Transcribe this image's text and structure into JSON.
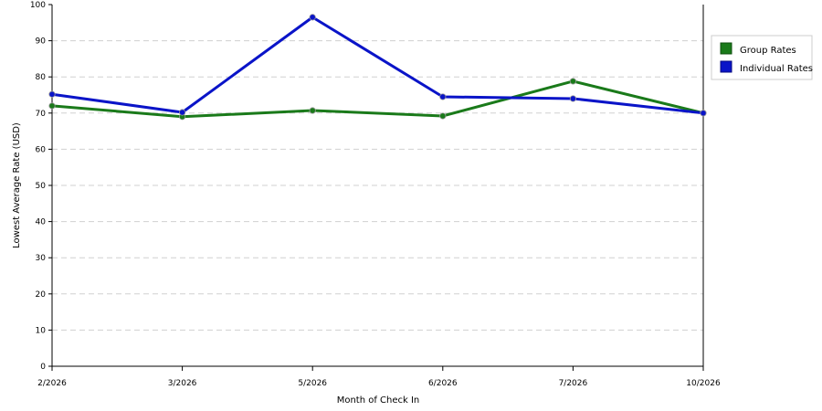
{
  "chart_data": {
    "type": "line",
    "title": "",
    "xlabel": "Month of Check In",
    "ylabel": "Lowest Average Rate (USD)",
    "categories": [
      "2/2026",
      "3/2026",
      "5/2026",
      "6/2026",
      "7/2026",
      "10/2026"
    ],
    "ylim": [
      0,
      100
    ],
    "yticks": [
      "0",
      "10",
      "20",
      "30",
      "40",
      "50",
      "60",
      "70",
      "80",
      "90",
      "100"
    ],
    "grid": "horizontal dashed",
    "legend_position": "right",
    "series": [
      {
        "name": "Group Rates",
        "color": "#1a7a1a",
        "values": [
          72,
          69,
          70.7,
          69.2,
          78.8,
          70
        ]
      },
      {
        "name": "Individual Rates",
        "color": "#0a14c8",
        "values": [
          75.2,
          70.2,
          96.5,
          74.5,
          74,
          70
        ]
      }
    ]
  }
}
